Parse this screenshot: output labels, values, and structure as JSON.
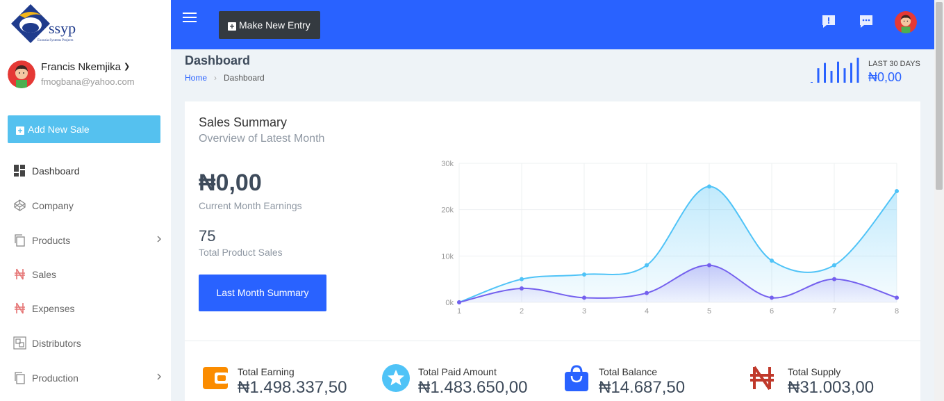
{
  "brand": {
    "logo_text": "ssyp",
    "logo_tagline": "Exousia Systems Projects"
  },
  "user": {
    "name": "Francis Nkemjika",
    "email": "fmogbana@yahoo.com"
  },
  "sidebar": {
    "add_sale_label": "Add New Sale",
    "items": [
      {
        "label": "Dashboard",
        "icon": "dashboard-icon"
      },
      {
        "label": "Company",
        "icon": "codepen-icon"
      },
      {
        "label": "Products",
        "icon": "copy-icon"
      },
      {
        "label": "Sales",
        "icon": "naira-icon"
      },
      {
        "label": "Expenses",
        "icon": "naira-icon"
      },
      {
        "label": "Distributors",
        "icon": "group-icon"
      },
      {
        "label": "Production",
        "icon": "copy-icon"
      }
    ]
  },
  "topbar": {
    "new_entry_label": "Make New Entry"
  },
  "page": {
    "title": "Dashboard",
    "breadcrumb": [
      "Home",
      "Dashboard"
    ],
    "last30_label": "LAST 30 DAYS",
    "last30_value": "₦0,00"
  },
  "summary": {
    "title": "Sales Summary",
    "subtitle": "Overview of Latest Month",
    "earnings_value": "₦0,00",
    "earnings_label": "Current Month Earnings",
    "sales_value": "75",
    "sales_label": "Total Product Sales",
    "button_label": "Last Month Summary"
  },
  "chart_data": {
    "type": "area",
    "x": [
      1,
      2,
      3,
      4,
      5,
      6,
      7,
      8
    ],
    "y_ticks": [
      "0k",
      "10k",
      "20k",
      "30k"
    ],
    "ylim": [
      0,
      30000
    ],
    "grid": true,
    "series": [
      {
        "values": [
          0,
          5000,
          6000,
          8000,
          25000,
          9000,
          8000,
          24000
        ],
        "color": "#4fc3f7"
      },
      {
        "values": [
          0,
          3000,
          1000,
          2000,
          8000,
          1000,
          5000,
          1000
        ],
        "color": "#7460ee"
      }
    ]
  },
  "stats": [
    {
      "label": "Total Earning",
      "value": "₦1.498.337,50",
      "icon": "wallet-icon",
      "color": "#fb8c00"
    },
    {
      "label": "Total Paid Amount",
      "value": "₦1.483.650,00",
      "icon": "star-icon",
      "color": "#4fc3f7"
    },
    {
      "label": "Total Balance",
      "value": "₦14.687,50",
      "icon": "shopping-bag-icon",
      "color": "#2962ff"
    },
    {
      "label": "Total Supply",
      "value": "₦31.003,00",
      "icon": "naira-icon",
      "color": "#c0392b"
    }
  ],
  "sparkline": [
    0,
    22,
    30,
    18,
    32,
    22,
    30,
    38
  ]
}
